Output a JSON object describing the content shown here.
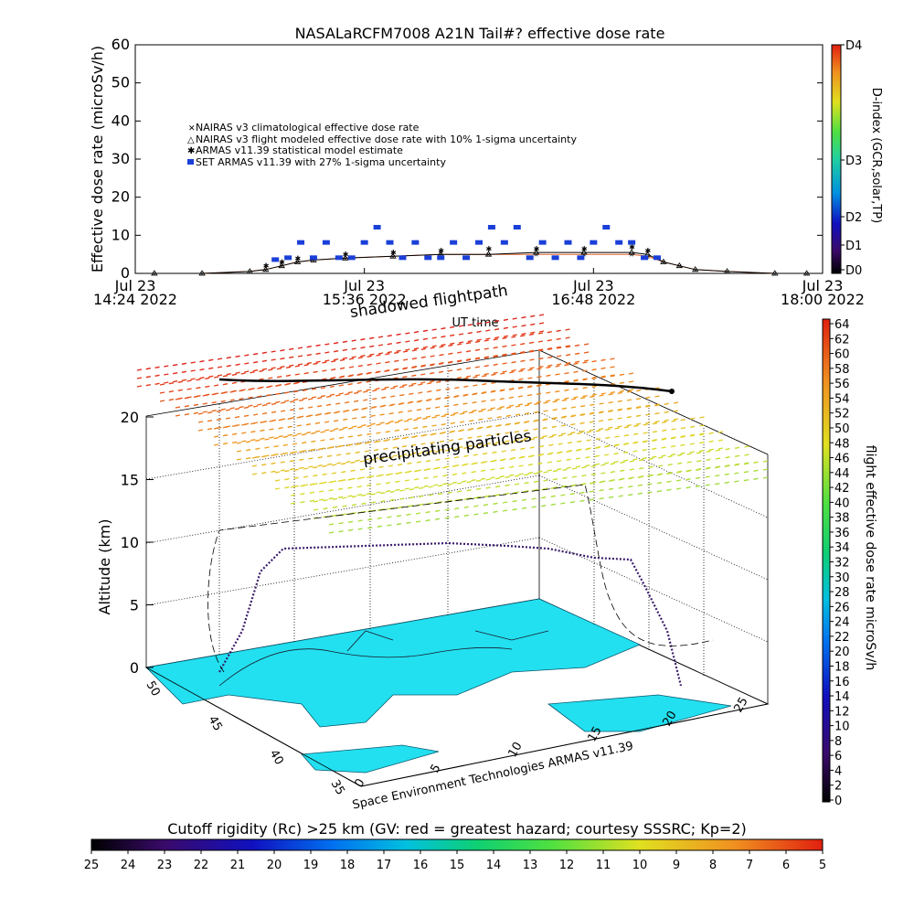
{
  "title": "NASALaRCFM7008  A21N Tail#? effective dose rate",
  "top_chart": {
    "ylabel": "Effective dose rate (microSv/h)",
    "xlabel": "UT time",
    "yticks": [
      "0",
      "10",
      "20",
      "30",
      "40",
      "50",
      "60"
    ],
    "xticks": [
      {
        "line1": "Jul 23",
        "line2": "14:24 2022"
      },
      {
        "line1": "Jul 23",
        "line2": "15:36 2022"
      },
      {
        "line1": "Jul 23",
        "line2": "16:48 2022"
      },
      {
        "line1": "Jul 23",
        "line2": "18:00 2022"
      }
    ],
    "legend": [
      "NAIRAS v3 climatological effective dose rate",
      "NAIRAS v3 flight modeled effective dose rate with 10% 1-sigma uncertainty",
      "ARMAS v11.39 statistical model estimate",
      "SET ARMAS v11.39 with 27% 1-sigma uncertainty"
    ],
    "dindex_label": "D-index (GCR,solar,TP)",
    "dindex_ticks": [
      "D4",
      "D3",
      "D2",
      "D1",
      "D0"
    ]
  },
  "scene": {
    "shadow_label": "shadowed flightpath",
    "precip_label": "precipitating particles",
    "zlabel": "Altitude (km)",
    "zticks": [
      "0",
      "5",
      "10",
      "15",
      "20"
    ],
    "lat_ticks": [
      "50",
      "45",
      "40",
      "35"
    ],
    "lon_ticks": [
      "0",
      "5",
      "10",
      "15",
      "20",
      "25"
    ],
    "credit": "Space Environment Technologies ARMAS v11.39"
  },
  "dose_colorbar": {
    "label": "flight effective dose rate microSv/h",
    "ticks": [
      "64",
      "62",
      "60",
      "58",
      "56",
      "54",
      "52",
      "50",
      "48",
      "46",
      "44",
      "42",
      "40",
      "38",
      "36",
      "34",
      "32",
      "30",
      "28",
      "26",
      "24",
      "22",
      "20",
      "18",
      "16",
      "14",
      "12",
      "10",
      "8",
      "6",
      "4",
      "2",
      "0"
    ]
  },
  "rc_colorbar": {
    "title": "Cutoff rigidity (Rc) >25 km (GV: red = greatest hazard; courtesy SSSRC; Kp=2)",
    "ticks": [
      "25",
      "24",
      "23",
      "22",
      "21",
      "20",
      "19",
      "18",
      "17",
      "16",
      "15",
      "14",
      "13",
      "12",
      "11",
      "10",
      "9",
      "8",
      "7",
      "6",
      "5"
    ]
  },
  "chart_data": {
    "type": "scatter",
    "title": "NASALaRCFM7008  A21N Tail#? effective dose rate",
    "xlabel": "UT time",
    "ylabel": "Effective dose rate (microSv/h)",
    "ylim": [
      0,
      60
    ],
    "xlim": [
      "14:24",
      "18:00"
    ],
    "legend_position": "upper-left",
    "series": [
      {
        "name": "NAIRAS v3 climatological effective dose rate",
        "color": "#e0622a",
        "x": [
          "14:30",
          "14:45",
          "15:00",
          "15:05",
          "15:10",
          "15:15",
          "15:20",
          "15:30",
          "15:45",
          "16:00",
          "16:15",
          "16:30",
          "16:45",
          "17:00",
          "17:05",
          "17:10",
          "17:15",
          "17:20",
          "17:30",
          "17:45",
          "17:55"
        ],
        "y": [
          0,
          0,
          0.5,
          1,
          2,
          3,
          3.5,
          4,
          4.5,
          5,
          5,
          5,
          5,
          5,
          4.5,
          3,
          2,
          1,
          0.5,
          0,
          0
        ]
      },
      {
        "name": "NAIRAS v3 flight modeled effective dose rate with 10% 1-sigma uncertainty",
        "color": "#000000",
        "x": [
          "14:30",
          "14:45",
          "15:00",
          "15:05",
          "15:10",
          "15:15",
          "15:20",
          "15:30",
          "15:45",
          "16:00",
          "16:15",
          "16:30",
          "16:45",
          "17:00",
          "17:05",
          "17:10",
          "17:15",
          "17:20",
          "17:30",
          "17:45",
          "17:55"
        ],
        "y": [
          0,
          0,
          0.5,
          1,
          2,
          3,
          3.5,
          4,
          4.5,
          5,
          5,
          5.5,
          5.5,
          5.5,
          5,
          3,
          2,
          1,
          0.5,
          0,
          0
        ]
      },
      {
        "name": "ARMAS v11.39 statistical model estimate",
        "color": "#44dd33",
        "x": [
          "15:05",
          "15:10",
          "15:15",
          "15:30",
          "15:45",
          "16:00",
          "16:15",
          "16:30",
          "16:45",
          "17:00",
          "17:05"
        ],
        "y": [
          2,
          3,
          4,
          5,
          5.5,
          6,
          6.5,
          6.5,
          6.5,
          7,
          6
        ]
      },
      {
        "name": "SET ARMAS v11.39 with 27% 1-sigma uncertainty",
        "color": "#1a3fd8",
        "x": [
          "15:08",
          "15:12",
          "15:16",
          "15:20",
          "15:24",
          "15:28",
          "15:32",
          "15:36",
          "15:40",
          "15:44",
          "15:48",
          "15:52",
          "15:56",
          "16:00",
          "16:04",
          "16:08",
          "16:12",
          "16:16",
          "16:20",
          "16:24",
          "16:28",
          "16:32",
          "16:36",
          "16:40",
          "16:44",
          "16:48",
          "16:52",
          "16:56",
          "17:00",
          "17:04",
          "17:08"
        ],
        "y": [
          3.5,
          4,
          8,
          4,
          8,
          4,
          4,
          8,
          12,
          8,
          4,
          8,
          4,
          4,
          8,
          4,
          8,
          12,
          8,
          12,
          4,
          8,
          4,
          8,
          4,
          8,
          12,
          8,
          8,
          4,
          4
        ]
      }
    ]
  }
}
